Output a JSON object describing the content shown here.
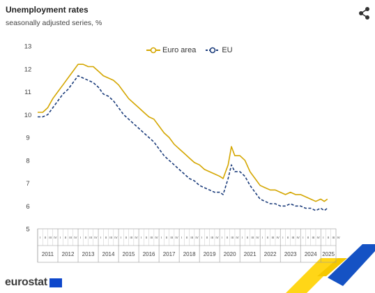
{
  "title": "Unemployment rates",
  "subtitle": "seasonally adjusted series, %",
  "brand": "eurostat",
  "share_icon": "share-icon",
  "chart_data": {
    "type": "line",
    "title": "Unemployment rates",
    "subtitle": "seasonally adjusted series, %",
    "ylim": [
      5,
      13
    ],
    "yticks": [
      "5",
      "6",
      "7",
      "8",
      "9",
      "10",
      "11",
      "12",
      "13"
    ],
    "xlim": [
      2011,
      2025.75
    ],
    "quarter_labels": [
      "I",
      "II",
      "III",
      "IV"
    ],
    "years": [
      "2011",
      "2012",
      "2013",
      "2014",
      "2015",
      "2016",
      "2017",
      "2018",
      "2019",
      "2020",
      "2021",
      "2022",
      "2023",
      "2024",
      "2025"
    ],
    "legend_position": "top",
    "grid": false,
    "series": [
      {
        "name": "Euro area",
        "color": "#d4a600",
        "style": "solid",
        "points": [
          [
            2011.0,
            10.1
          ],
          [
            2011.25,
            10.1
          ],
          [
            2011.5,
            10.3
          ],
          [
            2011.75,
            10.7
          ],
          [
            2012.0,
            11.0
          ],
          [
            2012.25,
            11.3
          ],
          [
            2012.5,
            11.6
          ],
          [
            2012.75,
            11.9
          ],
          [
            2013.0,
            12.2
          ],
          [
            2013.25,
            12.2
          ],
          [
            2013.5,
            12.1
          ],
          [
            2013.75,
            12.1
          ],
          [
            2014.0,
            11.9
          ],
          [
            2014.25,
            11.7
          ],
          [
            2014.5,
            11.6
          ],
          [
            2014.75,
            11.5
          ],
          [
            2015.0,
            11.3
          ],
          [
            2015.25,
            11.0
          ],
          [
            2015.5,
            10.7
          ],
          [
            2015.75,
            10.5
          ],
          [
            2016.0,
            10.3
          ],
          [
            2016.25,
            10.1
          ],
          [
            2016.5,
            9.9
          ],
          [
            2016.75,
            9.8
          ],
          [
            2017.0,
            9.5
          ],
          [
            2017.25,
            9.2
          ],
          [
            2017.5,
            9.0
          ],
          [
            2017.75,
            8.7
          ],
          [
            2018.0,
            8.5
          ],
          [
            2018.25,
            8.3
          ],
          [
            2018.5,
            8.1
          ],
          [
            2018.75,
            7.9
          ],
          [
            2019.0,
            7.8
          ],
          [
            2019.25,
            7.6
          ],
          [
            2019.5,
            7.5
          ],
          [
            2019.75,
            7.4
          ],
          [
            2020.0,
            7.3
          ],
          [
            2020.17,
            7.2
          ],
          [
            2020.42,
            7.8
          ],
          [
            2020.58,
            8.6
          ],
          [
            2020.75,
            8.2
          ],
          [
            2021.0,
            8.2
          ],
          [
            2021.25,
            8.0
          ],
          [
            2021.5,
            7.5
          ],
          [
            2021.75,
            7.2
          ],
          [
            2022.0,
            6.9
          ],
          [
            2022.25,
            6.8
          ],
          [
            2022.5,
            6.7
          ],
          [
            2022.75,
            6.7
          ],
          [
            2023.0,
            6.6
          ],
          [
            2023.25,
            6.5
          ],
          [
            2023.5,
            6.6
          ],
          [
            2023.75,
            6.5
          ],
          [
            2024.0,
            6.5
          ],
          [
            2024.25,
            6.4
          ],
          [
            2024.5,
            6.3
          ],
          [
            2024.75,
            6.2
          ],
          [
            2025.0,
            6.3
          ],
          [
            2025.17,
            6.2
          ],
          [
            2025.33,
            6.3
          ]
        ]
      },
      {
        "name": "EU",
        "color": "#1a3b7a",
        "style": "dashed",
        "points": [
          [
            2011.0,
            9.9
          ],
          [
            2011.25,
            9.9
          ],
          [
            2011.5,
            10.0
          ],
          [
            2011.75,
            10.3
          ],
          [
            2012.0,
            10.6
          ],
          [
            2012.25,
            10.9
          ],
          [
            2012.5,
            11.1
          ],
          [
            2012.75,
            11.4
          ],
          [
            2013.0,
            11.7
          ],
          [
            2013.25,
            11.6
          ],
          [
            2013.5,
            11.5
          ],
          [
            2013.75,
            11.4
          ],
          [
            2014.0,
            11.2
          ],
          [
            2014.25,
            10.9
          ],
          [
            2014.5,
            10.8
          ],
          [
            2014.75,
            10.6
          ],
          [
            2015.0,
            10.3
          ],
          [
            2015.25,
            10.0
          ],
          [
            2015.5,
            9.8
          ],
          [
            2015.75,
            9.6
          ],
          [
            2016.0,
            9.4
          ],
          [
            2016.25,
            9.2
          ],
          [
            2016.5,
            9.0
          ],
          [
            2016.75,
            8.8
          ],
          [
            2017.0,
            8.5
          ],
          [
            2017.25,
            8.2
          ],
          [
            2017.5,
            8.0
          ],
          [
            2017.75,
            7.8
          ],
          [
            2018.0,
            7.6
          ],
          [
            2018.25,
            7.4
          ],
          [
            2018.5,
            7.2
          ],
          [
            2018.75,
            7.1
          ],
          [
            2019.0,
            6.9
          ],
          [
            2019.25,
            6.8
          ],
          [
            2019.5,
            6.7
          ],
          [
            2019.75,
            6.6
          ],
          [
            2020.0,
            6.6
          ],
          [
            2020.17,
            6.5
          ],
          [
            2020.42,
            7.2
          ],
          [
            2020.58,
            7.8
          ],
          [
            2020.75,
            7.5
          ],
          [
            2021.0,
            7.5
          ],
          [
            2021.25,
            7.3
          ],
          [
            2021.5,
            6.9
          ],
          [
            2021.75,
            6.6
          ],
          [
            2022.0,
            6.3
          ],
          [
            2022.25,
            6.2
          ],
          [
            2022.5,
            6.1
          ],
          [
            2022.75,
            6.1
          ],
          [
            2023.0,
            6.0
          ],
          [
            2023.25,
            6.0
          ],
          [
            2023.5,
            6.1
          ],
          [
            2023.75,
            6.0
          ],
          [
            2024.0,
            6.0
          ],
          [
            2024.25,
            5.9
          ],
          [
            2024.5,
            5.9
          ],
          [
            2024.75,
            5.8
          ],
          [
            2025.0,
            5.9
          ],
          [
            2025.17,
            5.8
          ],
          [
            2025.33,
            5.9
          ]
        ]
      }
    ]
  }
}
